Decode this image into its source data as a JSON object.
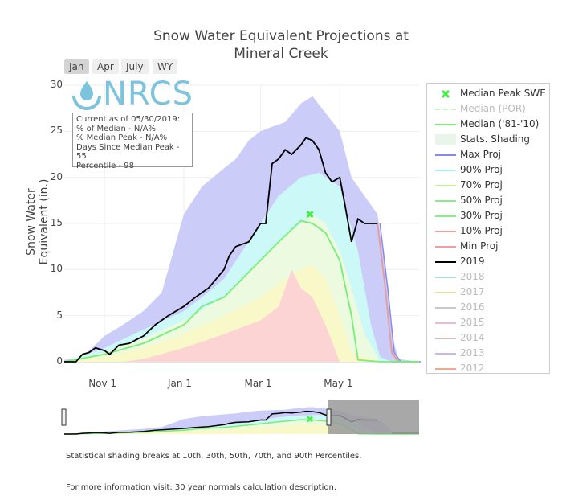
{
  "title_line1": "Snow Water Equivalent Projections at",
  "title_line2": "Mineral Creek",
  "range_buttons": [
    {
      "label": "Jan",
      "active": true
    },
    {
      "label": "Apr",
      "active": false
    },
    {
      "label": "July",
      "active": false
    },
    {
      "label": "WY",
      "active": false
    }
  ],
  "logo_text": "NRCS",
  "stat_box": {
    "line1": "Current as of 05/30/2019:",
    "line2": "% of Median - N/A%",
    "line3": "% Median Peak - N/A%",
    "line4": "Days Since Median Peak - 55",
    "line5": "Percentile - 98"
  },
  "footnote1": "Statistical shading breaks at 10th, 30th, 50th, 70th, and 90th Percentiles.",
  "footnote2": "For more information visit: 30 year normals calculation description.",
  "legend": [
    {
      "label": "Median Peak SWE",
      "symbol": "x",
      "color": "#44ee44",
      "enabled": true
    },
    {
      "label": "Median (POR)",
      "symbol": "dash",
      "color": "#bff5bf",
      "enabled": false
    },
    {
      "label": "Median ('81-'10)",
      "symbol": "line",
      "color": "#77ee77",
      "enabled": true
    },
    {
      "label": "Stats. Shading",
      "symbol": "box",
      "color": "#e8f5e8",
      "enabled": true
    },
    {
      "label": "Max Proj",
      "symbol": "line",
      "color": "#8888ee",
      "enabled": true
    },
    {
      "label": "90% Proj",
      "symbol": "line",
      "color": "#aaeeee",
      "enabled": true
    },
    {
      "label": "70% Proj",
      "symbol": "line",
      "color": "#c4f0a0",
      "enabled": true
    },
    {
      "label": "50% Proj",
      "symbol": "line",
      "color": "#88ee88",
      "enabled": true
    },
    {
      "label": "30% Proj",
      "symbol": "line",
      "color": "#88ee88",
      "enabled": true
    },
    {
      "label": "10% Proj",
      "symbol": "line",
      "color": "#f0a0a0",
      "enabled": true
    },
    {
      "label": "Min Proj",
      "symbol": "line",
      "color": "#f0a0a0",
      "enabled": true
    },
    {
      "label": "2019",
      "symbol": "line",
      "color": "#000000",
      "enabled": true
    },
    {
      "label": "2018",
      "symbol": "line",
      "color": "#aadddd",
      "enabled": false
    },
    {
      "label": "2017",
      "symbol": "line",
      "color": "#e0e0a0",
      "enabled": false
    },
    {
      "label": "2016",
      "symbol": "line",
      "color": "#c8c8c8",
      "enabled": false
    },
    {
      "label": "2015",
      "symbol": "line",
      "color": "#f0b8e0",
      "enabled": false
    },
    {
      "label": "2014",
      "symbol": "line",
      "color": "#d8b8b8",
      "enabled": false
    },
    {
      "label": "2013",
      "symbol": "line",
      "color": "#c8b8e8",
      "enabled": false
    },
    {
      "label": "2012",
      "symbol": "line",
      "color": "#f0a890",
      "enabled": false
    }
  ],
  "chart_data": {
    "type": "area",
    "title": "Snow Water Equivalent Projections at Mineral Creek",
    "ylabel": "Snow Water Equivalent (in.)",
    "xlabel": "",
    "x_tick_labels": [
      "Nov 1",
      "Jan 1",
      "Mar 1",
      "May 1"
    ],
    "x_tick_dates": [
      "2018-11-01",
      "2019-01-01",
      "2019-03-01",
      "2019-05-01"
    ],
    "x_range": [
      "2018-10-01",
      "2019-07-01"
    ],
    "yticks": [
      0,
      5,
      10,
      15,
      20,
      25,
      30
    ],
    "ylim": [
      0,
      30
    ],
    "grid": true,
    "legend_position": "right",
    "shading_colors": {
      "max_90": "#ccccf8",
      "p90_70": "#ccf8f8",
      "p70_50": "#ecfadf",
      "p50_30": "#f8f8c8",
      "p30_10": "#fcd4d4"
    },
    "series": [
      {
        "name": "Max Proj",
        "color": "#ccccf8",
        "x": [
          "2018-10-01",
          "2018-10-15",
          "2018-11-01",
          "2018-11-15",
          "2018-12-01",
          "2018-12-15",
          "2019-01-01",
          "2019-01-15",
          "2019-02-01",
          "2019-02-10",
          "2019-02-20",
          "2019-03-01",
          "2019-03-10",
          "2019-03-20",
          "2019-04-01",
          "2019-04-10",
          "2019-04-20",
          "2019-05-01",
          "2019-05-10",
          "2019-05-20",
          "2019-05-30",
          "2019-06-05",
          "2019-06-10",
          "2019-06-15",
          "2019-07-01"
        ],
        "values": [
          0.2,
          0.5,
          2.8,
          4,
          5.5,
          7.5,
          16,
          19,
          21,
          22,
          24,
          25,
          25.5,
          26,
          28,
          28.8,
          27,
          25,
          20,
          18,
          16,
          10,
          3,
          0.3,
          0
        ]
      },
      {
        "name": "90% Proj",
        "color": "#ccf8f8",
        "x": [
          "2018-10-01",
          "2018-11-01",
          "2018-12-01",
          "2019-01-01",
          "2019-01-15",
          "2019-02-01",
          "2019-02-15",
          "2019-03-01",
          "2019-03-15",
          "2019-04-01",
          "2019-04-15",
          "2019-05-01",
          "2019-05-15",
          "2019-05-25",
          "2019-06-01",
          "2019-06-10",
          "2019-07-01"
        ],
        "values": [
          0,
          1.5,
          3.5,
          5.5,
          7,
          9,
          12,
          15,
          18,
          20,
          20.5,
          19,
          12,
          4,
          0.5,
          0,
          0
        ]
      },
      {
        "name": "70% Proj",
        "color": "#ecfadf",
        "x": [
          "2018-10-01",
          "2018-11-01",
          "2018-12-01",
          "2019-01-01",
          "2019-02-01",
          "2019-03-01",
          "2019-03-15",
          "2019-04-01",
          "2019-04-10",
          "2019-04-20",
          "2019-05-01",
          "2019-05-10",
          "2019-05-20",
          "2019-06-01",
          "2019-07-01"
        ],
        "values": [
          0,
          1,
          2.5,
          4.5,
          7,
          11,
          13,
          15,
          16,
          15,
          12,
          8,
          3,
          0,
          0
        ]
      },
      {
        "name": "Median ('81-'10)",
        "color": "#77ee77",
        "x": [
          "2018-10-01",
          "2018-11-01",
          "2018-12-01",
          "2019-01-01",
          "2019-01-15",
          "2019-02-01",
          "2019-02-15",
          "2019-03-01",
          "2019-03-15",
          "2019-04-01",
          "2019-04-10",
          "2019-04-20",
          "2019-05-01",
          "2019-05-10",
          "2019-05-15",
          "2019-06-01",
          "2019-07-01"
        ],
        "values": [
          0,
          0.8,
          2,
          4,
          6,
          7,
          9,
          11,
          13,
          15.3,
          15,
          14,
          11,
          5,
          0.2,
          0,
          0
        ]
      },
      {
        "name": "30% Proj",
        "color": "#f8f8c8",
        "x": [
          "2018-10-01",
          "2018-11-01",
          "2018-12-01",
          "2019-01-01",
          "2019-02-01",
          "2019-03-01",
          "2019-03-15",
          "2019-04-01",
          "2019-04-10",
          "2019-04-20",
          "2019-05-01",
          "2019-05-10",
          "2019-06-01",
          "2019-07-01"
        ],
        "values": [
          0,
          0.5,
          1.5,
          3,
          5,
          7,
          8.5,
          10,
          10.5,
          9,
          5,
          1,
          0,
          0
        ]
      },
      {
        "name": "10% Proj",
        "color": "#fcd4d4",
        "x": [
          "2018-10-01",
          "2018-11-15",
          "2018-12-01",
          "2019-01-01",
          "2019-02-01",
          "2019-03-01",
          "2019-03-15",
          "2019-03-25",
          "2019-04-01",
          "2019-04-10",
          "2019-04-20",
          "2019-05-01",
          "2019-07-01"
        ],
        "values": [
          0,
          0,
          0.3,
          1.5,
          3,
          4.5,
          6,
          10,
          8,
          7,
          4,
          0,
          0
        ]
      },
      {
        "name": "2019",
        "color": "#000000",
        "x": [
          "2018-10-01",
          "2018-10-10",
          "2018-10-15",
          "2018-10-20",
          "2018-10-25",
          "2018-11-01",
          "2018-11-05",
          "2018-11-12",
          "2018-11-20",
          "2018-12-01",
          "2018-12-10",
          "2018-12-20",
          "2019-01-01",
          "2019-01-10",
          "2019-01-20",
          "2019-02-01",
          "2019-02-05",
          "2019-02-10",
          "2019-02-20",
          "2019-03-01",
          "2019-03-05",
          "2019-03-10",
          "2019-03-15",
          "2019-03-20",
          "2019-03-25",
          "2019-04-01",
          "2019-04-05",
          "2019-04-10",
          "2019-04-15",
          "2019-04-20",
          "2019-04-25",
          "2019-05-01",
          "2019-05-05",
          "2019-05-10",
          "2019-05-15",
          "2019-05-20",
          "2019-05-25",
          "2019-05-30"
        ],
        "values": [
          0,
          0,
          0.8,
          1,
          1.5,
          1.2,
          0.8,
          1.8,
          2,
          2.8,
          4,
          5,
          6,
          7,
          8,
          10,
          11.5,
          12.5,
          13,
          15,
          15,
          21.5,
          22,
          23,
          22.5,
          23.5,
          24.3,
          24,
          23,
          20.5,
          19.5,
          20,
          17,
          13,
          15.5,
          15,
          15,
          15
        ]
      },
      {
        "name": "Min Proj",
        "color": "#8888ee",
        "x": [
          "2019-05-30",
          "2019-06-05",
          "2019-06-10",
          "2019-06-15",
          "2019-07-01"
        ],
        "values": [
          15,
          8,
          1,
          0,
          0
        ]
      }
    ],
    "median_peak": {
      "x": "2019-04-08",
      "y": 16
    }
  }
}
